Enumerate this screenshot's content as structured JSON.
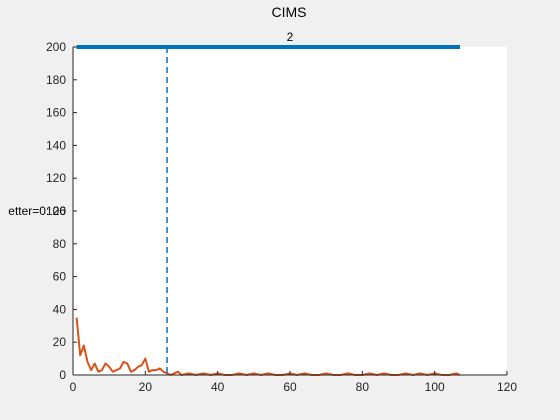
{
  "chart_data": {
    "type": "line",
    "title": "CIMS",
    "xlabel": "",
    "ylabel": "",
    "xlim": [
      0,
      120
    ],
    "ylim": [
      0,
      200
    ],
    "xticks": [
      0,
      20,
      40,
      60,
      80,
      100,
      120
    ],
    "yticks": [
      0,
      20,
      40,
      60,
      80,
      100,
      120,
      140,
      160,
      180,
      200
    ],
    "grid": false,
    "legend": "none",
    "series": [
      {
        "color": "#0072BD",
        "x": [
          1,
          107
        ],
        "y": [
          200,
          200
        ]
      },
      {
        "color": "#D95319",
        "x": [
          1,
          2,
          3,
          4,
          5,
          6,
          7,
          8,
          9,
          10,
          11,
          12,
          13,
          14,
          15,
          16,
          17,
          18,
          19,
          20,
          21,
          22,
          23,
          24,
          25,
          26,
          27,
          28,
          29,
          30,
          32,
          34,
          36,
          38,
          40,
          42,
          44,
          46,
          48,
          50,
          52,
          54,
          56,
          58,
          60,
          62,
          64,
          66,
          68,
          70,
          72,
          74,
          76,
          78,
          80,
          82,
          84,
          86,
          88,
          90,
          92,
          94,
          96,
          98,
          100,
          102,
          104,
          106,
          107
        ],
        "y": [
          35,
          12,
          18,
          8,
          3,
          7,
          2,
          3,
          7,
          5,
          2,
          3,
          4,
          8,
          7,
          2,
          3,
          5,
          6,
          10,
          2,
          3,
          3,
          4,
          2,
          1,
          0,
          1,
          2,
          0,
          1,
          0,
          1,
          0,
          1,
          0,
          0,
          1,
          0,
          1,
          0,
          1,
          0,
          0,
          1,
          0,
          1,
          0,
          0,
          1,
          0,
          0,
          1,
          0,
          0,
          1,
          0,
          1,
          0,
          0,
          1,
          0,
          1,
          0,
          1,
          0,
          0,
          1,
          0
        ]
      }
    ],
    "vline": {
      "x": 26,
      "color": "#0072BD",
      "style": "dashed"
    },
    "annotations": [
      {
        "text": "2",
        "x": 60,
        "y": 205
      },
      {
        "text": "etter=0: 26",
        "x": 0,
        "y": 100
      }
    ],
    "colors": {
      "figure_bg": "#f0f0f0",
      "axes_bg": "#ffffff"
    }
  }
}
